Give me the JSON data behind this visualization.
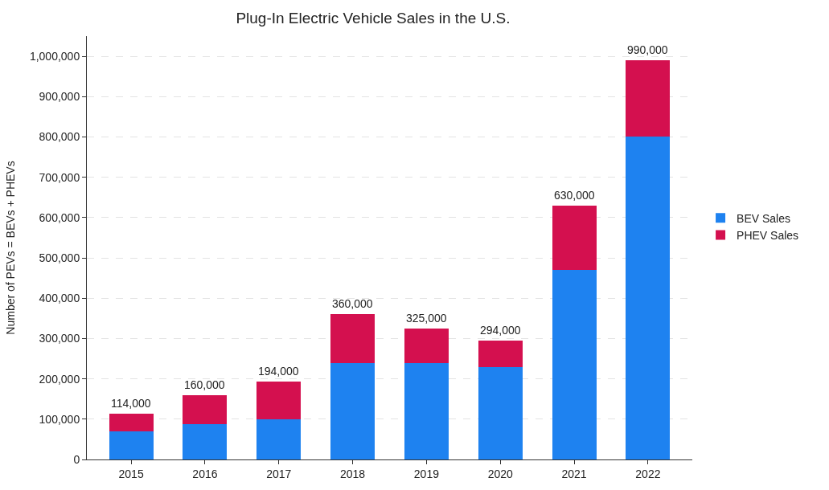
{
  "chart_data": {
    "type": "bar",
    "title": "Plug-In Electric Vehicle Sales in the U.S.",
    "ylabel": "Number of PEVs = BEVs + PHEVs",
    "categories": [
      "2015",
      "2016",
      "2017",
      "2018",
      "2019",
      "2020",
      "2021",
      "2022"
    ],
    "series": [
      {
        "name": "BEV Sales",
        "color": "#1e82f0",
        "values": [
          70000,
          87000,
          99000,
          240000,
          240000,
          230000,
          470000,
          800000
        ]
      },
      {
        "name": "PHEV Sales",
        "color": "#d4104f",
        "values": [
          44000,
          73000,
          95000,
          120000,
          85000,
          64000,
          160000,
          190000
        ]
      }
    ],
    "stacked": true,
    "totals": [
      "114,000",
      "160,000",
      "194,000",
      "360,000",
      "325,000",
      "294,000",
      "630,000",
      "990,000"
    ],
    "ylim": [
      0,
      1050000
    ],
    "yticks": [
      0,
      {
        "value": 100000,
        "label": "100,000"
      },
      {
        "value": 200000,
        "label": "200,000"
      },
      {
        "value": 300000,
        "label": "300,000"
      },
      {
        "value": 400000,
        "label": "400,000"
      },
      {
        "value": 500000,
        "label": "500,000"
      },
      {
        "value": 600000,
        "label": "600,000"
      },
      {
        "value": 700000,
        "label": "700,000"
      },
      {
        "value": 800000,
        "label": "800,000"
      },
      {
        "value": 900000,
        "label": "900,000"
      },
      {
        "value": 1000000,
        "label": "1,000,000"
      }
    ],
    "grid": "y",
    "legend": "right"
  }
}
